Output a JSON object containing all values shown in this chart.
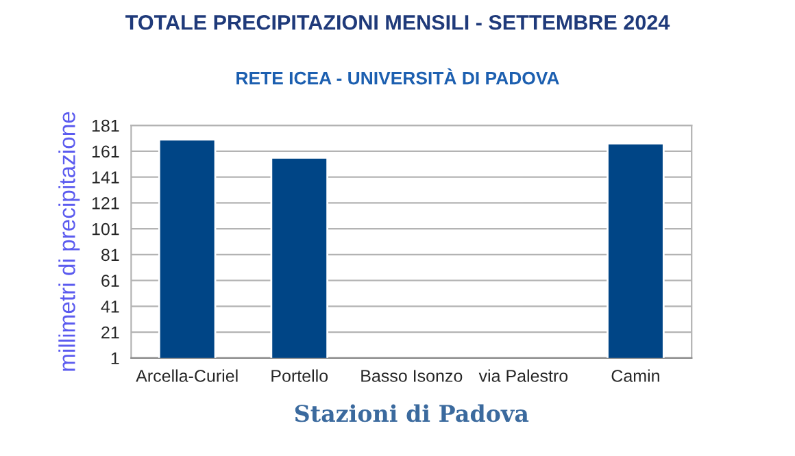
{
  "chart_data": {
    "type": "bar",
    "title": "TOTALE PRECIPITAZIONI MENSILI - SETTEMBRE 2024",
    "subtitle": "RETE ICEA - UNIVERSITÀ DI PADOVA",
    "xlabel": "Stazioni di Padova",
    "ylabel": "millimetri di precipitazione",
    "categories": [
      "Arcella-Curiel",
      "Portello",
      "Basso Isonzo",
      "via Palestro",
      "Camin"
    ],
    "values": [
      170,
      156,
      null,
      null,
      167
    ],
    "color": "#004586",
    "ylim": [
      1,
      181
    ],
    "yticks": [
      1,
      21,
      41,
      61,
      81,
      101,
      121,
      141,
      161,
      181
    ],
    "grid": "y",
    "legend": false
  }
}
